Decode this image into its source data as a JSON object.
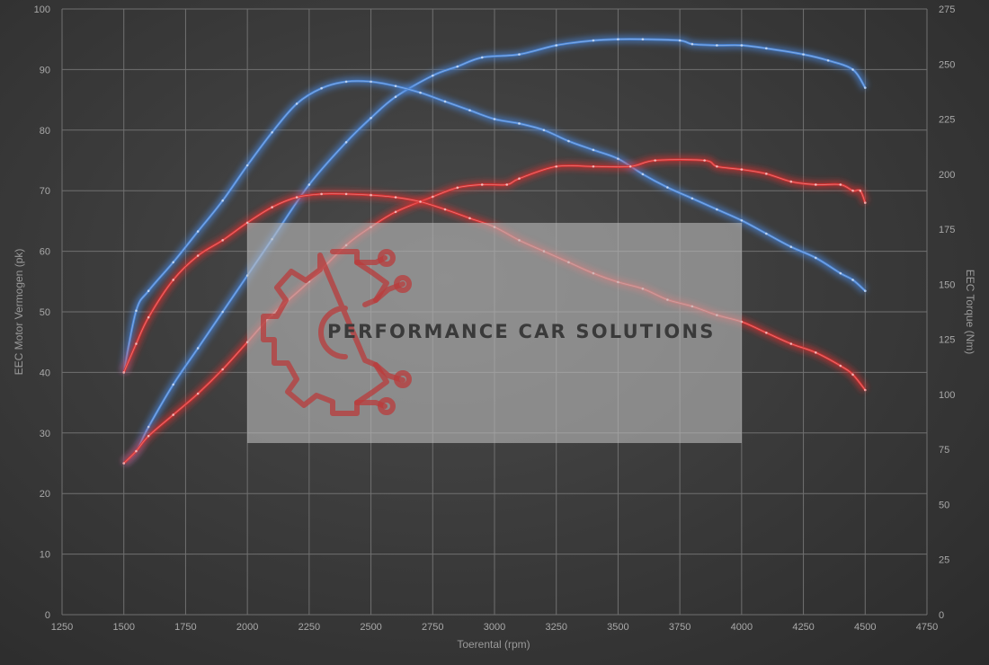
{
  "chart_data": {
    "type": "line",
    "xlabel": "Toerental (rpm)",
    "ylabel_left": "EEC Motor Vermogen (pk)",
    "ylabel_right": "EEC Torque (Nm)",
    "xlim": [
      1250,
      4750
    ],
    "ylim_left": [
      0,
      100
    ],
    "ylim_right": [
      0,
      275
    ],
    "x_ticks": [
      1250,
      1500,
      1750,
      2000,
      2250,
      2500,
      2750,
      3000,
      3250,
      3500,
      3750,
      4000,
      4250,
      4500,
      4750
    ],
    "y_left_ticks": [
      0,
      10,
      20,
      30,
      40,
      50,
      60,
      70,
      80,
      90,
      100
    ],
    "y_right_ticks": [
      0,
      25,
      50,
      75,
      100,
      125,
      150,
      175,
      200,
      225,
      250,
      275
    ],
    "grid": true,
    "series": [
      {
        "color": "#4a86d8",
        "axis": "left",
        "points": [
          [
            1500,
            25
          ],
          [
            1550,
            27
          ],
          [
            1600,
            31
          ],
          [
            1700,
            38
          ],
          [
            1800,
            44
          ],
          [
            1900,
            50
          ],
          [
            2000,
            56
          ],
          [
            2100,
            62
          ],
          [
            2250,
            71
          ],
          [
            2400,
            78
          ],
          [
            2500,
            82
          ],
          [
            2600,
            85.5
          ],
          [
            2750,
            89
          ],
          [
            2850,
            90.5
          ],
          [
            2950,
            92
          ],
          [
            3100,
            92.5
          ],
          [
            3250,
            94
          ],
          [
            3400,
            94.8
          ],
          [
            3500,
            95
          ],
          [
            3600,
            95
          ],
          [
            3750,
            94.8
          ],
          [
            3800,
            94.2
          ],
          [
            3900,
            94
          ],
          [
            4000,
            94
          ],
          [
            4100,
            93.5
          ],
          [
            4250,
            92.5
          ],
          [
            4350,
            91.5
          ],
          [
            4450,
            90
          ],
          [
            4500,
            87
          ]
        ]
      },
      {
        "color": "#4a86d8",
        "axis": "right",
        "points": [
          [
            1500,
            110
          ],
          [
            1550,
            138
          ],
          [
            1600,
            147
          ],
          [
            1700,
            160
          ],
          [
            1800,
            174
          ],
          [
            1900,
            188
          ],
          [
            2000,
            204
          ],
          [
            2100,
            219
          ],
          [
            2200,
            232
          ],
          [
            2300,
            239
          ],
          [
            2400,
            242
          ],
          [
            2500,
            242
          ],
          [
            2600,
            240
          ],
          [
            2700,
            237
          ],
          [
            2800,
            233
          ],
          [
            2900,
            229
          ],
          [
            3000,
            225
          ],
          [
            3100,
            223
          ],
          [
            3200,
            220
          ],
          [
            3300,
            215
          ],
          [
            3400,
            211
          ],
          [
            3500,
            207
          ],
          [
            3600,
            200
          ],
          [
            3700,
            194
          ],
          [
            3800,
            189
          ],
          [
            3900,
            184
          ],
          [
            4000,
            179
          ],
          [
            4100,
            173
          ],
          [
            4200,
            167
          ],
          [
            4300,
            162
          ],
          [
            4400,
            155
          ],
          [
            4450,
            152
          ],
          [
            4500,
            147
          ]
        ]
      },
      {
        "color": "#d93131",
        "axis": "left",
        "points": [
          [
            1500,
            25
          ],
          [
            1550,
            27
          ],
          [
            1600,
            29.5
          ],
          [
            1700,
            33
          ],
          [
            1800,
            36.5
          ],
          [
            1900,
            40.5
          ],
          [
            2000,
            45
          ],
          [
            2100,
            49.5
          ],
          [
            2250,
            55
          ],
          [
            2400,
            61
          ],
          [
            2500,
            64
          ],
          [
            2600,
            66.5
          ],
          [
            2750,
            69
          ],
          [
            2850,
            70.5
          ],
          [
            2950,
            71
          ],
          [
            3050,
            71
          ],
          [
            3100,
            72
          ],
          [
            3250,
            74
          ],
          [
            3400,
            74
          ],
          [
            3550,
            74
          ],
          [
            3650,
            75
          ],
          [
            3850,
            75
          ],
          [
            3900,
            74
          ],
          [
            4000,
            73.5
          ],
          [
            4100,
            72.8
          ],
          [
            4200,
            71.5
          ],
          [
            4300,
            71
          ],
          [
            4400,
            71
          ],
          [
            4450,
            70
          ],
          [
            4480,
            70
          ],
          [
            4500,
            68
          ]
        ]
      },
      {
        "color": "#d93131",
        "axis": "right",
        "points": [
          [
            1500,
            110
          ],
          [
            1550,
            123
          ],
          [
            1600,
            135
          ],
          [
            1700,
            152
          ],
          [
            1800,
            163
          ],
          [
            1900,
            170
          ],
          [
            2000,
            178
          ],
          [
            2100,
            185
          ],
          [
            2200,
            189.5
          ],
          [
            2300,
            191
          ],
          [
            2400,
            191
          ],
          [
            2500,
            190.5
          ],
          [
            2600,
            189.5
          ],
          [
            2700,
            187.5
          ],
          [
            2800,
            184
          ],
          [
            2900,
            180
          ],
          [
            3000,
            176
          ],
          [
            3100,
            170
          ],
          [
            3200,
            165
          ],
          [
            3300,
            160
          ],
          [
            3400,
            155
          ],
          [
            3500,
            151
          ],
          [
            3600,
            148
          ],
          [
            3700,
            143
          ],
          [
            3800,
            140
          ],
          [
            3900,
            136
          ],
          [
            4000,
            133
          ],
          [
            4100,
            128
          ],
          [
            4200,
            123
          ],
          [
            4300,
            119
          ],
          [
            4400,
            113
          ],
          [
            4450,
            109
          ],
          [
            4500,
            102
          ]
        ]
      }
    ],
    "watermark": {
      "text": "PERFORMANCE CAR SOLUTIONS",
      "logo_color": "#b93b3b",
      "box_color": "#bcbcbc"
    }
  }
}
